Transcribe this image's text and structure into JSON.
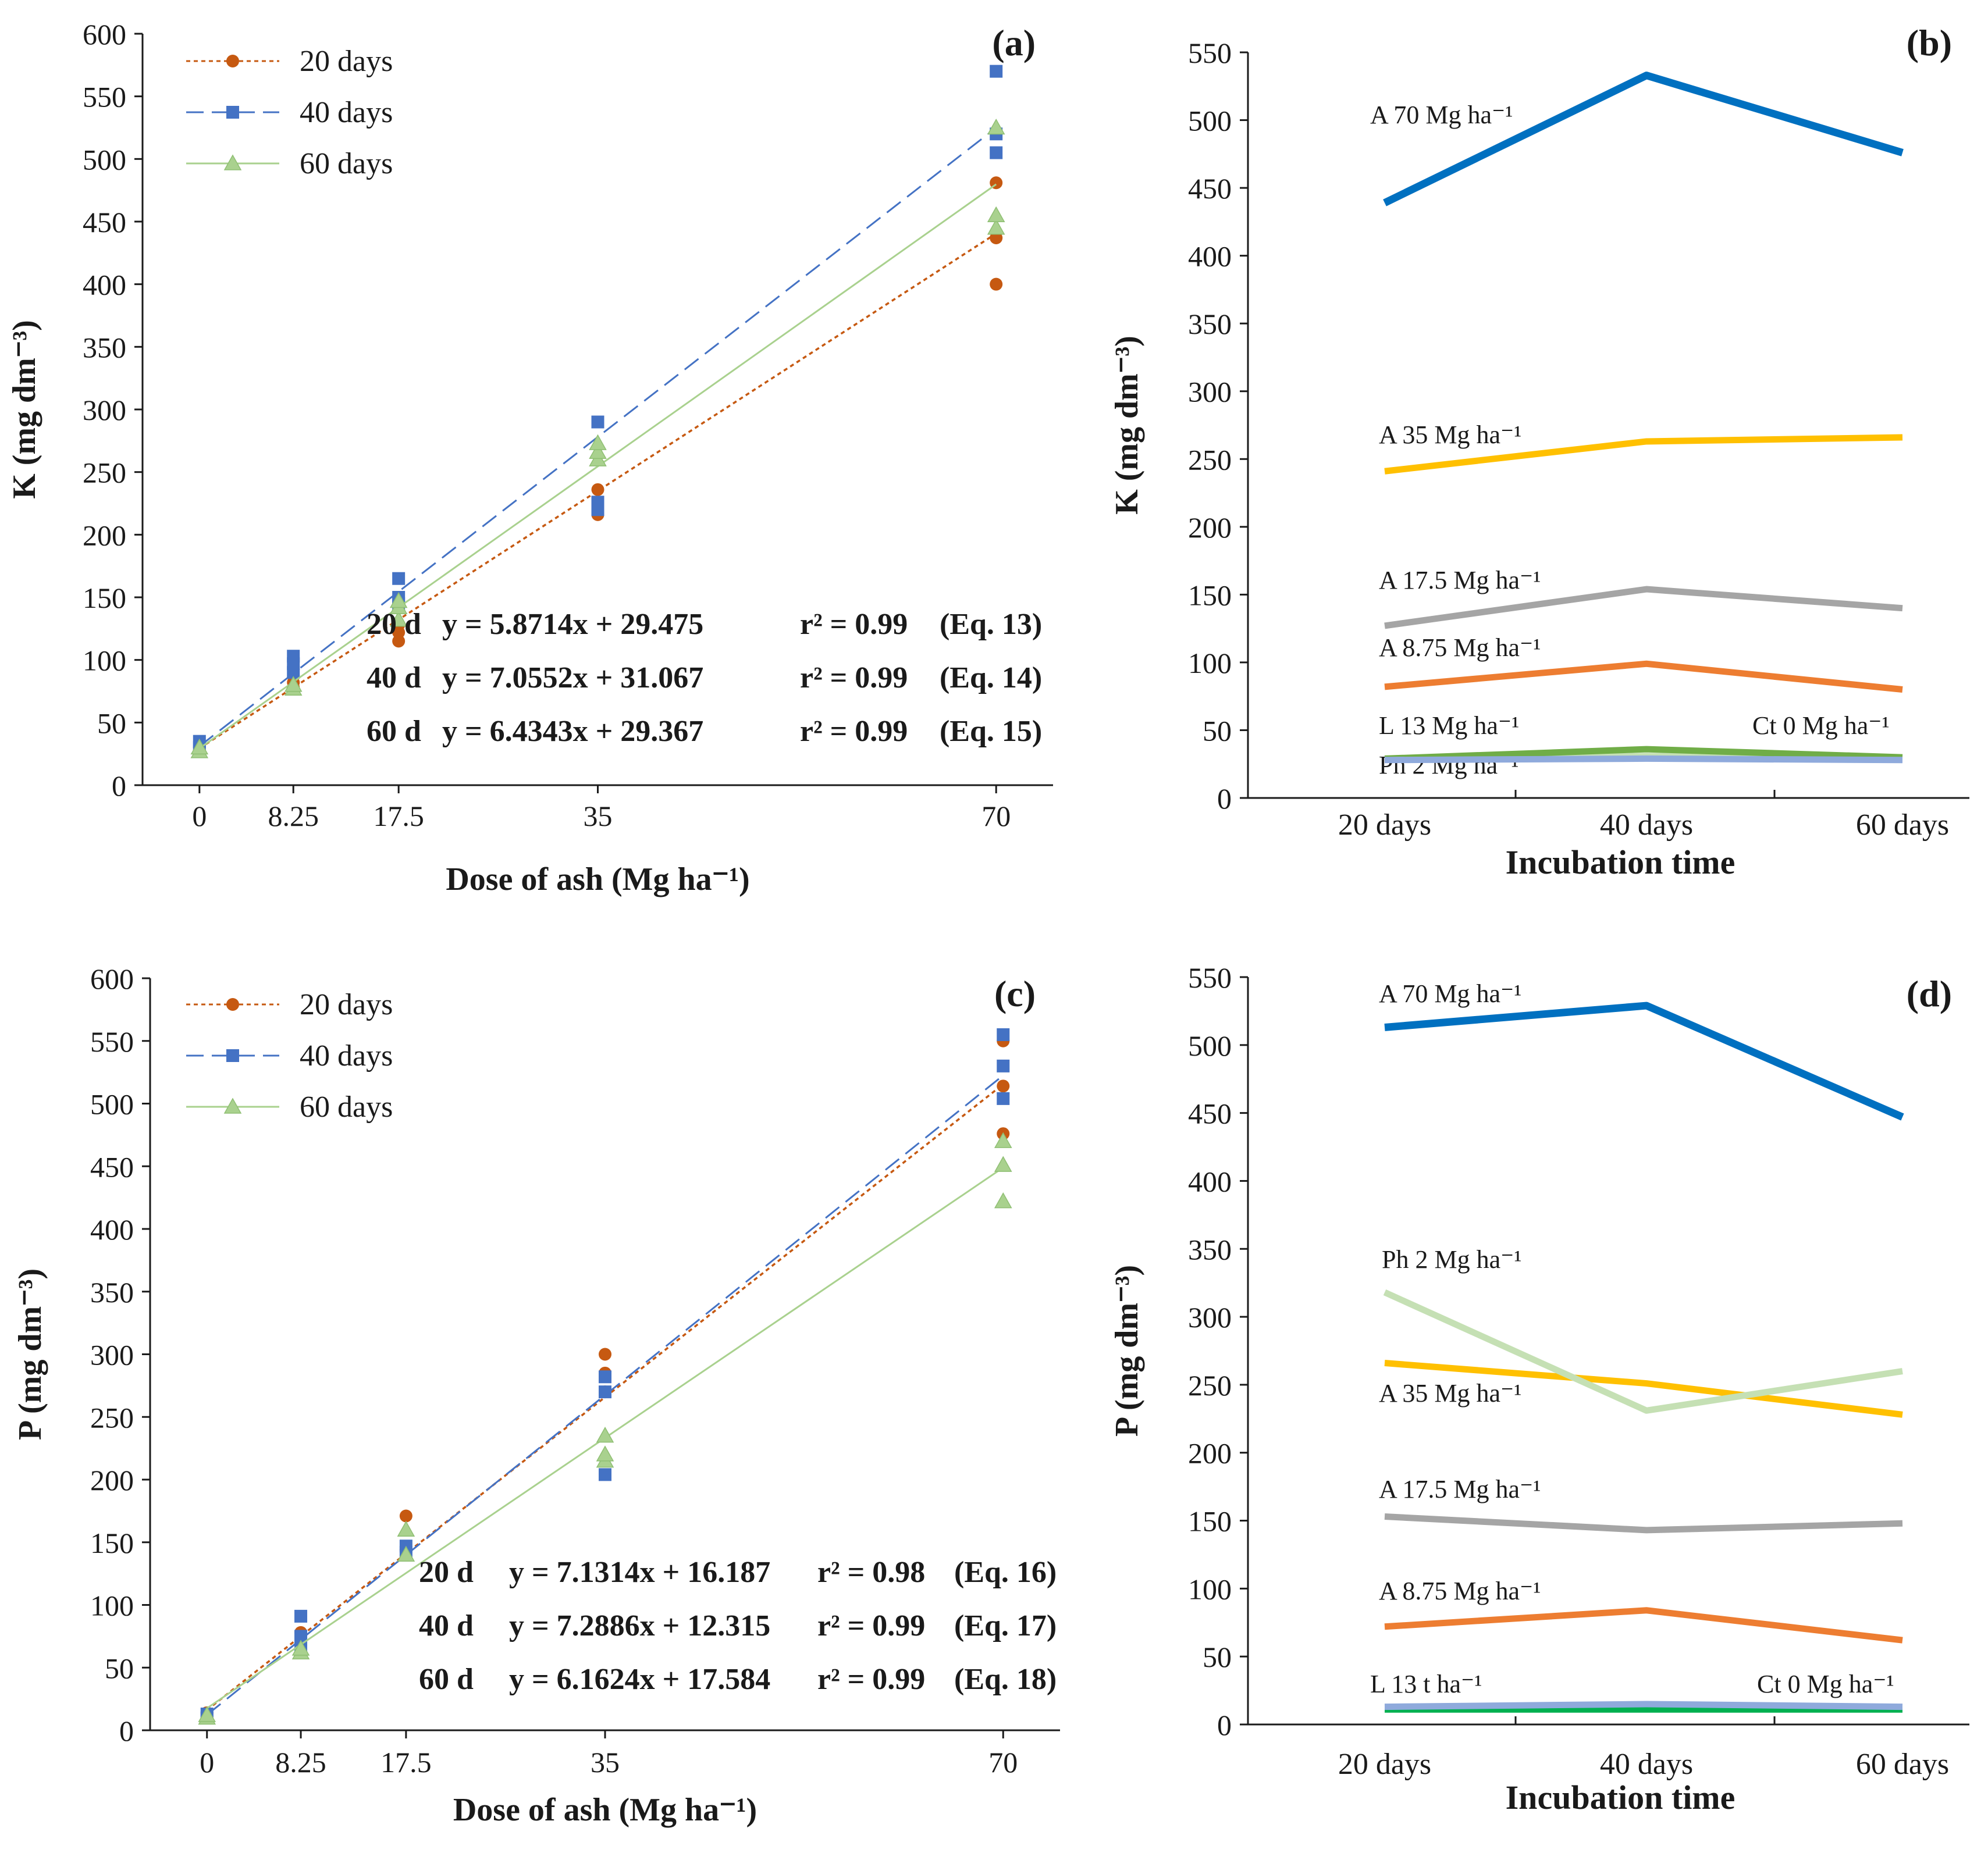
{
  "colors": {
    "d20": "#c65911",
    "d40": "#4472c4",
    "d60": "#a9d18e",
    "a70": "#0070c0",
    "a35": "#ffc000",
    "a175": "#a5a5a5",
    "a875": "#ed7d31",
    "l13": "#70ad47",
    "ph2": "#c5e0b4",
    "ct0": "#8faadc",
    "l13d": "#00b050",
    "axis": "#1a1a1a"
  },
  "chart_data": [
    {
      "id": "a",
      "type": "scatter",
      "panel_label": "(a)",
      "xlabel": "Dose of ash (Mg ha⁻¹)",
      "ylabel": "K (mg dm⁻³)",
      "xlim": [
        -5,
        75
      ],
      "ylim": [
        0,
        600
      ],
      "x_ticks": [
        0,
        8.25,
        17.5,
        35,
        70
      ],
      "x_tick_labels": [
        "0",
        "8.25",
        "17.5",
        "35",
        "70"
      ],
      "y_ticks": [
        0,
        50,
        100,
        150,
        200,
        250,
        300,
        350,
        400,
        450,
        500,
        550,
        600
      ],
      "series": [
        {
          "name": "20 days",
          "marker": "circle",
          "color": "d20",
          "dash": "dot",
          "points": [
            [
              0,
              28
            ],
            [
              0,
              30
            ],
            [
              8.25,
              78
            ],
            [
              8.25,
              82
            ],
            [
              17.5,
              115
            ],
            [
              17.5,
              122
            ],
            [
              17.5,
              128
            ],
            [
              35,
              216
            ],
            [
              35,
              236
            ],
            [
              70,
              400
            ],
            [
              70,
              437
            ],
            [
              70,
              481
            ]
          ],
          "fit": {
            "slope": 5.8714,
            "intercept": 29.475
          }
        },
        {
          "name": "40 days",
          "marker": "square",
          "color": "d40",
          "dash": "dash",
          "points": [
            [
              0,
              30
            ],
            [
              0,
              35
            ],
            [
              8.25,
              90
            ],
            [
              8.25,
              97
            ],
            [
              8.25,
              103
            ],
            [
              17.5,
              145
            ],
            [
              17.5,
              150
            ],
            [
              17.5,
              165
            ],
            [
              35,
              220
            ],
            [
              35,
              226
            ],
            [
              35,
              290
            ],
            [
              70,
              505
            ],
            [
              70,
              520
            ],
            [
              70,
              570
            ]
          ],
          "fit": {
            "slope": 7.0552,
            "intercept": 31.067
          }
        },
        {
          "name": "60 days",
          "marker": "triangle",
          "color": "d60",
          "dash": "solid",
          "points": [
            [
              0,
              27
            ],
            [
              0,
              30
            ],
            [
              8.25,
              77
            ],
            [
              8.25,
              80
            ],
            [
              17.5,
              132
            ],
            [
              17.5,
              142
            ],
            [
              17.5,
              147
            ],
            [
              35,
              260
            ],
            [
              35,
              266
            ],
            [
              35,
              273
            ],
            [
              70,
              445
            ],
            [
              70,
              455
            ],
            [
              70,
              525
            ]
          ],
          "fit": {
            "slope": 6.4343,
            "intercept": 29.367
          }
        }
      ],
      "equations": [
        {
          "label": "20 d",
          "eq": "y = 5.8714x + 29.475",
          "r2": "r² = 0.99",
          "ref": "(Eq. 13)"
        },
        {
          "label": "40 d",
          "eq": "y = 7.0552x + 31.067",
          "r2": "r² = 0.99",
          "ref": "(Eq. 14)"
        },
        {
          "label": "60 d",
          "eq": "y = 6.4343x + 29.367",
          "r2": "r² = 0.99",
          "ref": "(Eq. 15)"
        }
      ]
    },
    {
      "id": "b",
      "type": "line",
      "panel_label": "(b)",
      "xlabel": "Incubation time",
      "ylabel": "K (mg dm⁻³)",
      "categories": [
        "20 days",
        "40 days",
        "60 days"
      ],
      "ylim": [
        0,
        550
      ],
      "y_ticks": [
        0,
        50,
        100,
        150,
        200,
        250,
        300,
        350,
        400,
        450,
        500,
        550
      ],
      "series": [
        {
          "name": "Ph 2 Mg ha⁻¹",
          "color": "ph2",
          "values": [
            29,
            31,
            29
          ]
        },
        {
          "name": "L 13 Mg ha⁻¹",
          "color": "l13",
          "values": [
            29,
            36,
            30
          ]
        },
        {
          "name": "Ct 0 Mg ha⁻¹",
          "color": "ct0",
          "values": [
            28,
            29,
            28
          ]
        },
        {
          "name": "A 8.75 Mg ha⁻¹",
          "color": "a875",
          "values": [
            82,
            99,
            80
          ]
        },
        {
          "name": "A 17.5 Mg ha⁻¹",
          "color": "a175",
          "values": [
            127,
            154,
            140
          ]
        },
        {
          "name": "A 35 Mg ha⁻¹",
          "color": "a35",
          "values": [
            241,
            263,
            266
          ]
        },
        {
          "name": "A 70 Mg ha⁻¹",
          "color": "a70",
          "values": [
            439,
            533,
            476
          ]
        }
      ]
    },
    {
      "id": "c",
      "type": "scatter",
      "panel_label": "(c)",
      "xlabel": "Dose of ash (Mg ha⁻¹)",
      "ylabel": "P  (mg dm⁻³)",
      "xlim": [
        -5,
        75
      ],
      "ylim": [
        0,
        600
      ],
      "x_ticks": [
        0,
        8.25,
        17.5,
        35,
        70
      ],
      "x_tick_labels": [
        "0",
        "8.25",
        "17.5",
        "35",
        "70"
      ],
      "y_ticks": [
        0,
        50,
        100,
        150,
        200,
        250,
        300,
        350,
        400,
        450,
        500,
        550,
        600
      ],
      "series": [
        {
          "name": "20 days",
          "marker": "circle",
          "color": "d20",
          "dash": "dot",
          "points": [
            [
              0,
              10
            ],
            [
              0,
              14
            ],
            [
              8.25,
              68
            ],
            [
              8.25,
              78
            ],
            [
              17.5,
              144
            ],
            [
              17.5,
              171
            ],
            [
              35,
              270
            ],
            [
              35,
              285
            ],
            [
              35,
              300
            ],
            [
              70,
              476
            ],
            [
              70,
              514
            ],
            [
              70,
              550
            ]
          ],
          "fit": {
            "slope": 7.1314,
            "intercept": 16.187
          }
        },
        {
          "name": "40 days",
          "marker": "square",
          "color": "d40",
          "dash": "dash",
          "points": [
            [
              0,
              10
            ],
            [
              0,
              13
            ],
            [
              8.25,
              65
            ],
            [
              8.25,
              75
            ],
            [
              8.25,
              91
            ],
            [
              17.5,
              142
            ],
            [
              17.5,
              147
            ],
            [
              35,
              204
            ],
            [
              35,
              270
            ],
            [
              35,
              282
            ],
            [
              70,
              504
            ],
            [
              70,
              530
            ],
            [
              70,
              555
            ]
          ],
          "fit": {
            "slope": 7.2886,
            "intercept": 12.315
          }
        },
        {
          "name": "60 days",
          "marker": "triangle",
          "color": "d60",
          "dash": "solid",
          "points": [
            [
              0,
              10
            ],
            [
              0,
              12
            ],
            [
              8.25,
              62
            ],
            [
              8.25,
              65
            ],
            [
              17.5,
              140
            ],
            [
              17.5,
              160
            ],
            [
              35,
              215
            ],
            [
              35,
              220
            ],
            [
              35,
              235
            ],
            [
              70,
              422
            ],
            [
              70,
              451
            ],
            [
              70,
              470
            ]
          ],
          "fit": {
            "slope": 6.1624,
            "intercept": 17.584
          }
        }
      ],
      "equations": [
        {
          "label": "20 d",
          "eq": "y = 7.1314x + 16.187",
          "r2": "r² = 0.98",
          "ref": "(Eq. 16)"
        },
        {
          "label": "40 d",
          "eq": "y = 7.2886x + 12.315",
          "r2": "r² = 0.99",
          "ref": "(Eq. 17)"
        },
        {
          "label": "60 d",
          "eq": "y = 6.1624x + 17.584",
          "r2": "r² = 0.99",
          "ref": "(Eq. 18)"
        }
      ]
    },
    {
      "id": "d",
      "type": "line",
      "panel_label": "(d)",
      "xlabel": "Incubation time",
      "ylabel": "P  (mg dm⁻³)",
      "categories": [
        "20 days",
        "40 days",
        "60 days"
      ],
      "ylim": [
        0,
        550
      ],
      "y_ticks": [
        0,
        50,
        100,
        150,
        200,
        250,
        300,
        350,
        400,
        450,
        500,
        550
      ],
      "series": [
        {
          "name": "L 13 t ha⁻¹",
          "color": "l13d",
          "values": [
            11,
            11,
            11
          ]
        },
        {
          "name": "Ct 0 Mg ha⁻¹",
          "color": "ct0",
          "values": [
            13,
            15,
            13
          ]
        },
        {
          "name": "A 8.75 Mg ha⁻¹",
          "color": "a875",
          "values": [
            72,
            84,
            62
          ]
        },
        {
          "name": "A 17.5 Mg ha⁻¹",
          "color": "a175",
          "values": [
            153,
            143,
            148
          ]
        },
        {
          "name": "A 35 Mg ha⁻¹",
          "color": "a35",
          "values": [
            266,
            251,
            228
          ]
        },
        {
          "name": "Ph 2 Mg ha⁻¹",
          "color": "ph2",
          "values": [
            318,
            231,
            260
          ]
        },
        {
          "name": "A 70 Mg ha⁻¹",
          "color": "a70",
          "values": [
            513,
            529,
            447
          ]
        }
      ]
    }
  ]
}
